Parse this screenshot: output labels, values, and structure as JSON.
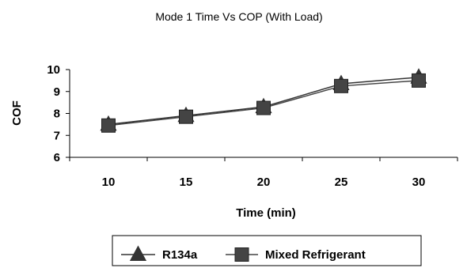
{
  "chart_data": {
    "type": "line",
    "title": "Mode 1 Time Vs COP (With Load)",
    "xlabel": "Time (min)",
    "ylabel": "COF",
    "categories": [
      "10",
      "15",
      "20",
      "25",
      "30"
    ],
    "ylim": [
      6,
      10
    ],
    "yticks": [
      "6",
      "7",
      "8",
      "9",
      "10"
    ],
    "grid": false,
    "legend_position": "bottom",
    "series": [
      {
        "name": "R134a",
        "marker": "triangle",
        "color": "#333333",
        "values": [
          7.5,
          7.9,
          8.3,
          9.35,
          9.65
        ]
      },
      {
        "name": "Mixed Refrigerant",
        "marker": "square",
        "color": "#444444",
        "values": [
          7.45,
          7.85,
          8.25,
          9.25,
          9.5
        ]
      }
    ]
  }
}
